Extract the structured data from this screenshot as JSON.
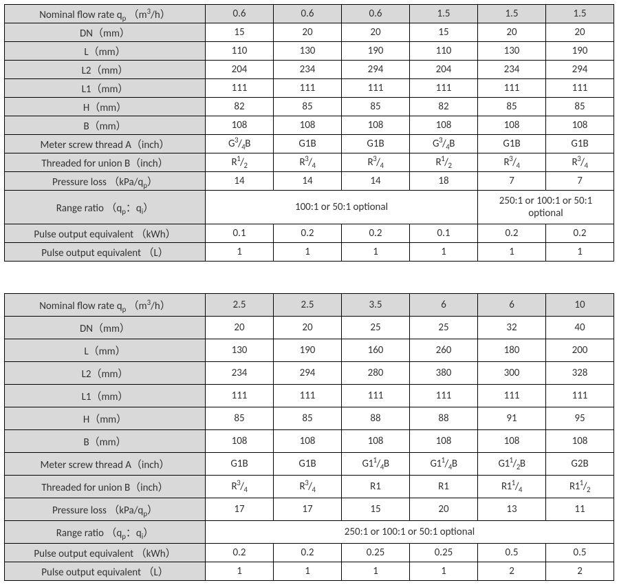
{
  "colors": {
    "headerBg": "#d9d9d9",
    "border": "#000000",
    "text": "#323232",
    "bg": "#ffffff"
  },
  "typography": {
    "fontFamily": "Calibri, Segoe UI, Arial, sans-serif",
    "fontSizePx": 15
  },
  "layout": {
    "widthPx": 900,
    "labelColPx": 292,
    "dataColPx": 99,
    "tables": 2
  },
  "tables": [
    {
      "id": "spec-table-1",
      "rowHeightPx": 22,
      "rows": [
        {
          "type": "header",
          "label": "Nominal flow rate q<sub>p</sub> （m<sup>3</sup>/h）",
          "cells": [
            "0.6",
            "0.6",
            "0.6",
            "1.5",
            "1.5",
            "1.5"
          ]
        },
        {
          "type": "data",
          "label": "DN（mm）",
          "cells": [
            "15",
            "20",
            "20",
            "15",
            "20",
            "20"
          ]
        },
        {
          "type": "data",
          "label": "L（mm）",
          "cells": [
            "110",
            "130",
            "190",
            "110",
            "130",
            "190"
          ]
        },
        {
          "type": "data",
          "label": "L2（mm）",
          "cells": [
            "204",
            "234",
            "294",
            "204",
            "234",
            "294"
          ]
        },
        {
          "type": "data",
          "label": "L1（mm）",
          "cells": [
            "111",
            "111",
            "111",
            "111",
            "111",
            "111"
          ]
        },
        {
          "type": "data",
          "label": "H（mm）",
          "cells": [
            "82",
            "85",
            "85",
            "82",
            "85",
            "85"
          ]
        },
        {
          "type": "data",
          "label": "B（mm）",
          "cells": [
            "108",
            "108",
            "108",
            "108",
            "108",
            "108"
          ]
        },
        {
          "type": "data",
          "label": "Meter screw thread A（inch）",
          "cells": [
            "G<sup>3</sup>/<sub>4</sub>B",
            "G1B",
            "G1B",
            "G<sup>3</sup>/<sub>4</sub>B",
            "G1B",
            "G1B"
          ]
        },
        {
          "type": "data",
          "label": "Threaded for union B（inch）",
          "cells": [
            "R<sup>1</sup>/<sub>2</sub>",
            "R<sup>3</sup>/<sub>4</sub>",
            "R<sup>3</sup>/<sub>4</sub>",
            "R<sup>1</sup>/<sub>2</sub>",
            "R<sup>3</sup>/<sub>4</sub>",
            "R<sup>3</sup>/<sub>4</sub>"
          ]
        },
        {
          "type": "data",
          "label": "Pressure loss  （kPa/q<sub>p</sub>）",
          "cells": [
            "14",
            "14",
            "14",
            "18",
            "7",
            "7"
          ]
        },
        {
          "type": "range",
          "label": "Range ratio （q<sub>p</sub>：q<sub>i</sub>）",
          "spans": [
            {
              "colspan": 4,
              "text": "100:1 or 50:1 optional"
            },
            {
              "colspan": 2,
              "text": "250:1 or 100:1 or 50:1 optional"
            }
          ],
          "tall": true
        },
        {
          "type": "data",
          "label": "Pulse output equivalent （kWh）",
          "cells": [
            "0.1",
            "0.2",
            "0.2",
            "0.1",
            "0.2",
            "0.2"
          ]
        },
        {
          "type": "data",
          "label": "Pulse output equivalent （L）",
          "cells": [
            "1",
            "1",
            "1",
            "1",
            "1",
            "1"
          ]
        }
      ]
    },
    {
      "id": "spec-table-2",
      "rowHeightPx": 28,
      "rows": [
        {
          "type": "header",
          "label": "Nominal flow rate q<sub>p</sub> （m<sup>3</sup>/h）",
          "cells": [
            "2.5",
            "2.5",
            "3.5",
            "6",
            "6",
            "10"
          ]
        },
        {
          "type": "data",
          "label": "DN（mm）",
          "cells": [
            "20",
            "20",
            "25",
            "25",
            "32",
            "40"
          ]
        },
        {
          "type": "data",
          "label": "L（mm）",
          "cells": [
            "130",
            "190",
            "160",
            "260",
            "180",
            "200"
          ]
        },
        {
          "type": "data",
          "label": "L2（mm）",
          "cells": [
            "234",
            "294",
            "280",
            "380",
            "300",
            "328"
          ]
        },
        {
          "type": "data",
          "label": "L1（mm）",
          "cells": [
            "111",
            "111",
            "111",
            "111",
            "111",
            "111"
          ]
        },
        {
          "type": "data",
          "label": "H（mm）",
          "cells": [
            "85",
            "85",
            "88",
            "88",
            "91",
            "95"
          ]
        },
        {
          "type": "data",
          "label": "B（mm）",
          "cells": [
            "108",
            "108",
            "108",
            "108",
            "108",
            "108"
          ]
        },
        {
          "type": "data",
          "label": "Meter screw thread A（inch）",
          "cells": [
            "G1B",
            "G1B",
            "G1<sup>1</sup>/<sub>4</sub>B",
            "G1<sup>1</sup>/<sub>4</sub>B",
            "G1<sup>1</sup>/<sub>2</sub>B",
            "G2B"
          ]
        },
        {
          "type": "data",
          "label": "Threaded for union B（inch）",
          "cells": [
            "R<sup>3</sup>/<sub>4</sub>",
            "R<sup>3</sup>/<sub>4</sub>",
            "R1",
            "R1",
            "R1<sup>1</sup>/<sub>4</sub>",
            "R1<sup>1</sup>/<sub>2</sub>"
          ]
        },
        {
          "type": "data",
          "label": "Pressure loss  （kPa/q<sub>p</sub>）",
          "cells": [
            "17",
            "17",
            "15",
            "20",
            "13",
            "11"
          ]
        },
        {
          "type": "range",
          "label": "Range ratio （q<sub>p</sub>：q<sub>i</sub>）",
          "spans": [
            {
              "colspan": 6,
              "text": "250:1 or 100:1 or 50:1 optional"
            }
          ]
        },
        {
          "type": "data",
          "label": "Pulse output equivalent （kWh）",
          "cells": [
            "0.2",
            "0.2",
            "0.25",
            "0.25",
            "0.5",
            "0.5"
          ],
          "short": true
        },
        {
          "type": "data",
          "label": "Pulse output equivalent （L）",
          "cells": [
            "1",
            "1",
            "1",
            "1",
            "2",
            "2"
          ],
          "short": true
        }
      ]
    }
  ]
}
